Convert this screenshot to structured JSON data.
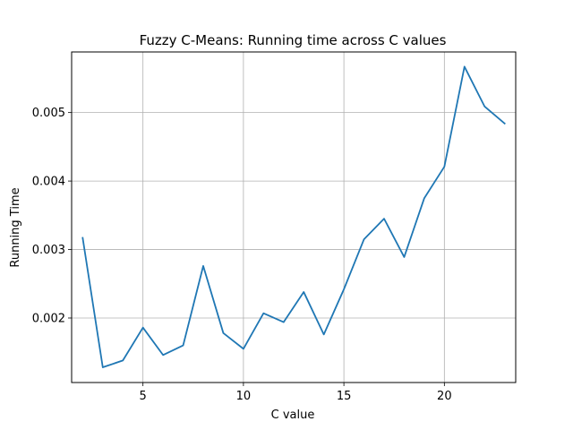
{
  "chart_data": {
    "type": "line",
    "title": "Fuzzy C-Means: Running time across C values",
    "xlabel": "C value",
    "ylabel": "Running Time",
    "xlim": [
      1.45,
      23.55
    ],
    "ylim": [
      0.001058,
      0.005885
    ],
    "xticks": [
      5,
      10,
      15,
      20
    ],
    "xtick_labels": [
      "5",
      "10",
      "15",
      "20"
    ],
    "yticks": [
      0.002,
      0.003,
      0.004,
      0.005
    ],
    "ytick_labels": [
      "0.002",
      "0.003",
      "0.004",
      "0.005"
    ],
    "grid": true,
    "line_color": "#1f77b4",
    "series": [
      {
        "x": [
          2,
          3,
          4,
          5,
          6,
          7,
          8,
          9,
          10,
          11,
          12,
          13,
          14,
          15,
          16,
          17,
          18,
          19,
          20,
          21,
          22,
          23
        ],
        "values": [
          0.00317,
          0.00128,
          0.00138,
          0.00186,
          0.00146,
          0.0016,
          0.00276,
          0.00178,
          0.00155,
          0.00207,
          0.00194,
          0.00238,
          0.00176,
          0.00242,
          0.00315,
          0.00345,
          0.00289,
          0.00375,
          0.00421,
          0.00567,
          0.00509,
          0.00484
        ]
      }
    ]
  }
}
